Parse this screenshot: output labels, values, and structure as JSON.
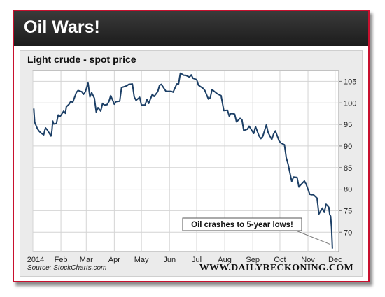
{
  "banner": {
    "title": "Oil Wars!"
  },
  "colors": {
    "frame_border": "#c8102e",
    "line": "#1c3f66",
    "banner": "#262626",
    "plot_bg": "#ffffff"
  },
  "source": "Source: StockCharts.com",
  "brand": "WWW.DAILYRECKONING.COM",
  "chart_data": {
    "type": "line",
    "title": "Light crude - spot price",
    "xlabel": "",
    "ylabel": "",
    "x_tick_labels": [
      "2014",
      "Feb",
      "Mar",
      "Apr",
      "May",
      "Jun",
      "Jul",
      "Aug",
      "Sep",
      "Oct",
      "Nov",
      "Dec"
    ],
    "x_range": [
      "2014-01-01",
      "2014-12-05"
    ],
    "y_range": [
      65.5,
      107.5
    ],
    "y_ticks": [
      70,
      75,
      80,
      85,
      90,
      95,
      100,
      105
    ],
    "y_axis_side": "right",
    "grid": true,
    "annotation": {
      "text": "Oil crashes to 5-year lows!",
      "target": [
        "2014-11-28",
        66.2
      ]
    },
    "series": [
      {
        "points": [
          [
            "2014-01-02",
            98.7
          ],
          [
            "2014-01-03",
            95.5
          ],
          [
            "2014-01-06",
            94.0
          ],
          [
            "2014-01-08",
            93.4
          ],
          [
            "2014-01-10",
            93.0
          ],
          [
            "2014-01-13",
            92.6
          ],
          [
            "2014-01-14",
            93.5
          ],
          [
            "2014-01-15",
            94.2
          ],
          [
            "2014-01-17",
            93.7
          ],
          [
            "2014-01-21",
            92.3
          ],
          [
            "2014-01-22",
            93.5
          ],
          [
            "2014-01-23",
            95.8
          ],
          [
            "2014-01-24",
            95.1
          ],
          [
            "2014-01-27",
            95.2
          ],
          [
            "2014-01-29",
            97.2
          ],
          [
            "2014-01-31",
            96.8
          ],
          [
            "2014-02-04",
            98.1
          ],
          [
            "2014-02-06",
            97.6
          ],
          [
            "2014-02-07",
            99.1
          ],
          [
            "2014-02-10",
            99.7
          ],
          [
            "2014-02-12",
            100.4
          ],
          [
            "2014-02-14",
            100.1
          ],
          [
            "2014-02-18",
            102.4
          ],
          [
            "2014-02-20",
            102.9
          ],
          [
            "2014-02-24",
            102.6
          ],
          [
            "2014-02-26",
            102.0
          ],
          [
            "2014-02-28",
            102.6
          ],
          [
            "2014-03-03",
            104.6
          ],
          [
            "2014-03-05",
            101.4
          ],
          [
            "2014-03-07",
            102.4
          ],
          [
            "2014-03-10",
            101.1
          ],
          [
            "2014-03-12",
            97.9
          ],
          [
            "2014-03-14",
            98.9
          ],
          [
            "2014-03-17",
            98.1
          ],
          [
            "2014-03-19",
            99.9
          ],
          [
            "2014-03-21",
            99.5
          ],
          [
            "2014-03-24",
            99.6
          ],
          [
            "2014-03-26",
            100.3
          ],
          [
            "2014-03-28",
            101.7
          ],
          [
            "2014-04-01",
            99.7
          ],
          [
            "2014-04-03",
            100.3
          ],
          [
            "2014-04-07",
            100.4
          ],
          [
            "2014-04-09",
            103.6
          ],
          [
            "2014-04-11",
            103.7
          ],
          [
            "2014-04-15",
            104.0
          ],
          [
            "2014-04-17",
            104.3
          ],
          [
            "2014-04-21",
            104.4
          ],
          [
            "2014-04-23",
            101.4
          ],
          [
            "2014-04-25",
            100.6
          ],
          [
            "2014-04-29",
            101.3
          ],
          [
            "2014-05-01",
            99.5
          ],
          [
            "2014-05-05",
            99.5
          ],
          [
            "2014-05-07",
            100.8
          ],
          [
            "2014-05-09",
            99.9
          ],
          [
            "2014-05-13",
            102.0
          ],
          [
            "2014-05-15",
            101.5
          ],
          [
            "2014-05-19",
            102.6
          ],
          [
            "2014-05-21",
            104.1
          ],
          [
            "2014-05-23",
            104.3
          ],
          [
            "2014-05-28",
            102.7
          ],
          [
            "2014-05-30",
            102.7
          ],
          [
            "2014-06-03",
            102.7
          ],
          [
            "2014-06-05",
            102.5
          ],
          [
            "2014-06-09",
            104.4
          ],
          [
            "2014-06-11",
            104.4
          ],
          [
            "2014-06-13",
            106.9
          ],
          [
            "2014-06-17",
            106.4
          ],
          [
            "2014-06-19",
            106.4
          ],
          [
            "2014-06-23",
            106.0
          ],
          [
            "2014-06-25",
            106.5
          ],
          [
            "2014-06-27",
            105.7
          ],
          [
            "2014-07-01",
            105.4
          ],
          [
            "2014-07-03",
            104.1
          ],
          [
            "2014-07-08",
            103.4
          ],
          [
            "2014-07-10",
            102.9
          ],
          [
            "2014-07-14",
            100.9
          ],
          [
            "2014-07-16",
            101.2
          ],
          [
            "2014-07-18",
            103.1
          ],
          [
            "2014-07-22",
            102.4
          ],
          [
            "2014-07-24",
            102.1
          ],
          [
            "2014-07-28",
            101.7
          ],
          [
            "2014-07-31",
            98.2
          ],
          [
            "2014-08-04",
            98.3
          ],
          [
            "2014-08-06",
            96.9
          ],
          [
            "2014-08-08",
            97.6
          ],
          [
            "2014-08-12",
            97.4
          ],
          [
            "2014-08-14",
            95.6
          ],
          [
            "2014-08-18",
            96.4
          ],
          [
            "2014-08-20",
            96.1
          ],
          [
            "2014-08-22",
            93.6
          ],
          [
            "2014-08-26",
            93.9
          ],
          [
            "2014-08-28",
            94.6
          ],
          [
            "2014-09-02",
            92.9
          ],
          [
            "2014-09-04",
            94.5
          ],
          [
            "2014-09-08",
            92.3
          ],
          [
            "2014-09-10",
            91.7
          ],
          [
            "2014-09-12",
            92.2
          ],
          [
            "2014-09-16",
            94.9
          ],
          [
            "2014-09-18",
            93.1
          ],
          [
            "2014-09-22",
            91.5
          ],
          [
            "2014-09-24",
            92.8
          ],
          [
            "2014-09-26",
            93.5
          ],
          [
            "2014-09-30",
            91.2
          ],
          [
            "2014-10-02",
            90.7
          ],
          [
            "2014-10-06",
            90.3
          ],
          [
            "2014-10-08",
            87.3
          ],
          [
            "2014-10-10",
            85.8
          ],
          [
            "2014-10-14",
            81.8
          ],
          [
            "2014-10-16",
            82.8
          ],
          [
            "2014-10-20",
            82.7
          ],
          [
            "2014-10-22",
            80.5
          ],
          [
            "2014-10-24",
            81.0
          ],
          [
            "2014-10-28",
            81.9
          ],
          [
            "2014-10-30",
            81.1
          ],
          [
            "2014-11-03",
            78.8
          ],
          [
            "2014-11-05",
            78.7
          ],
          [
            "2014-11-07",
            78.7
          ],
          [
            "2014-11-11",
            77.9
          ],
          [
            "2014-11-13",
            74.2
          ],
          [
            "2014-11-17",
            75.6
          ],
          [
            "2014-11-19",
            74.6
          ],
          [
            "2014-11-21",
            76.5
          ],
          [
            "2014-11-24",
            75.8
          ],
          [
            "2014-11-25",
            74.1
          ],
          [
            "2014-11-26",
            73.7
          ],
          [
            "2014-11-27",
            71.0
          ],
          [
            "2014-11-28",
            66.2
          ]
        ]
      }
    ]
  }
}
